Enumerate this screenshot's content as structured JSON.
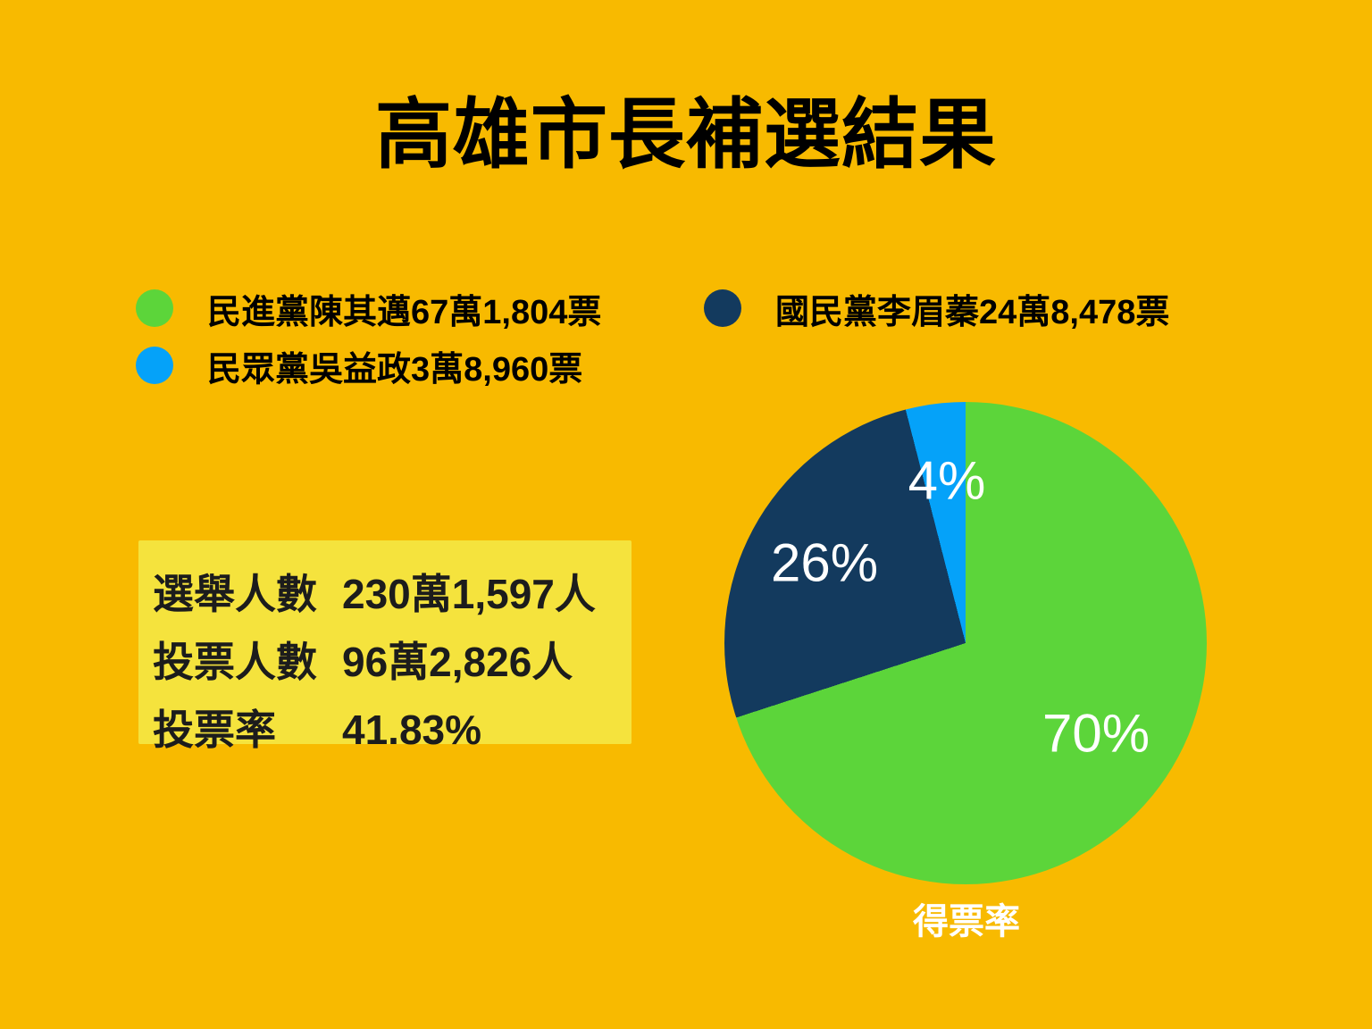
{
  "title": "高雄市長補選結果",
  "colors": {
    "background": "#F8BA00",
    "title_text": "#000000",
    "legend_text": "#000000",
    "info_box_bg": "#F5E33D",
    "info_box_text": "#1C1C1C",
    "pie_label_text": "#FFFFFF",
    "green": "#5CD53A",
    "navy": "#133A5E",
    "blue": "#05A2F9"
  },
  "info_box": {
    "rows": [
      {
        "label": "選舉人數",
        "value": "230萬1,597人"
      },
      {
        "label": "投票人數",
        "value": "96萬2,826人"
      },
      {
        "label": "投票率",
        "value": "41.83%"
      }
    ]
  },
  "chart_data": {
    "type": "pie",
    "title": "高雄市長補選結果",
    "caption": "得票率",
    "start_angle_deg": 0,
    "direction": "clockwise",
    "legend_position": "top",
    "slices": [
      {
        "party": "民進黨",
        "candidate": "陳其邁",
        "votes": "67萬1,804票",
        "legend_label": "民進黨陳其邁67萬1,804票",
        "percent": 70,
        "display": "70%",
        "color": "#5CD53A"
      },
      {
        "party": "國民黨",
        "candidate": "李眉蓁",
        "votes": "24萬8,478票",
        "legend_label": "國民黨李眉蓁24萬8,478票",
        "percent": 26,
        "display": "26%",
        "color": "#133A5E"
      },
      {
        "party": "民眾黨",
        "candidate": "吳益政",
        "votes": "3萬8,960票",
        "legend_label": "民眾黨吳益政3萬8,960票",
        "percent": 4,
        "display": "4%",
        "color": "#05A2F9"
      }
    ]
  }
}
